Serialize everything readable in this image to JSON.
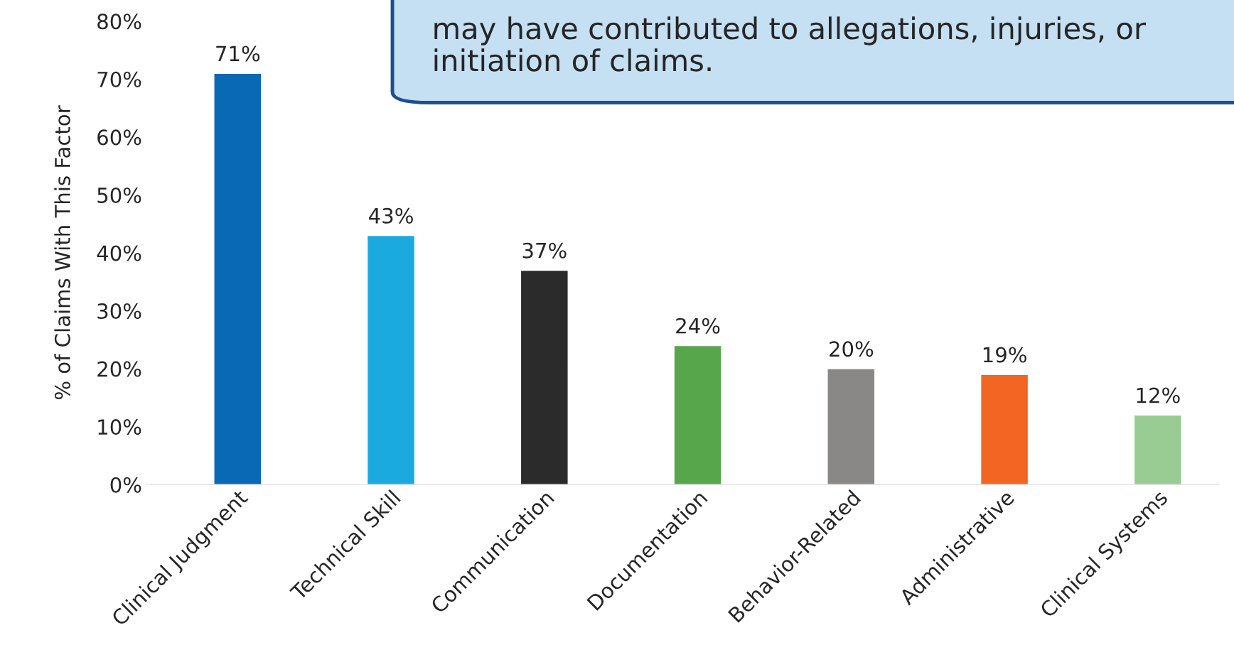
{
  "chart_data": {
    "type": "bar",
    "ylabel": "% of Claims With This Factor",
    "categories": [
      "Clinical Judgment",
      "Technical Skill",
      "Communication",
      "Documentation",
      "Behavior-Related",
      "Administrative",
      "Clinical Systems"
    ],
    "values": [
      71,
      43,
      37,
      24,
      20,
      19,
      12
    ],
    "colors": [
      "#0a69b5",
      "#1aaae0",
      "#2b2b2b",
      "#58a64c",
      "#898887",
      "#f26522",
      "#99cc92"
    ],
    "value_labels": [
      "71%",
      "43%",
      "37%",
      "24%",
      "20%",
      "19%",
      "12%"
    ],
    "ylim": [
      0,
      80
    ],
    "yticks": [
      {
        "value": 0,
        "label": "0%"
      },
      {
        "value": 10,
        "label": "10%"
      },
      {
        "value": 20,
        "label": "20%"
      },
      {
        "value": 30,
        "label": "30%"
      },
      {
        "value": 40,
        "label": "40%"
      },
      {
        "value": 50,
        "label": "50%"
      },
      {
        "value": 60,
        "label": "60%"
      },
      {
        "value": 70,
        "label": "70%"
      },
      {
        "value": 80,
        "label": "80%"
      }
    ],
    "grid": false,
    "annotations": [
      "may have contributed to allegations, injuries, or\ninitiation of claims."
    ]
  }
}
